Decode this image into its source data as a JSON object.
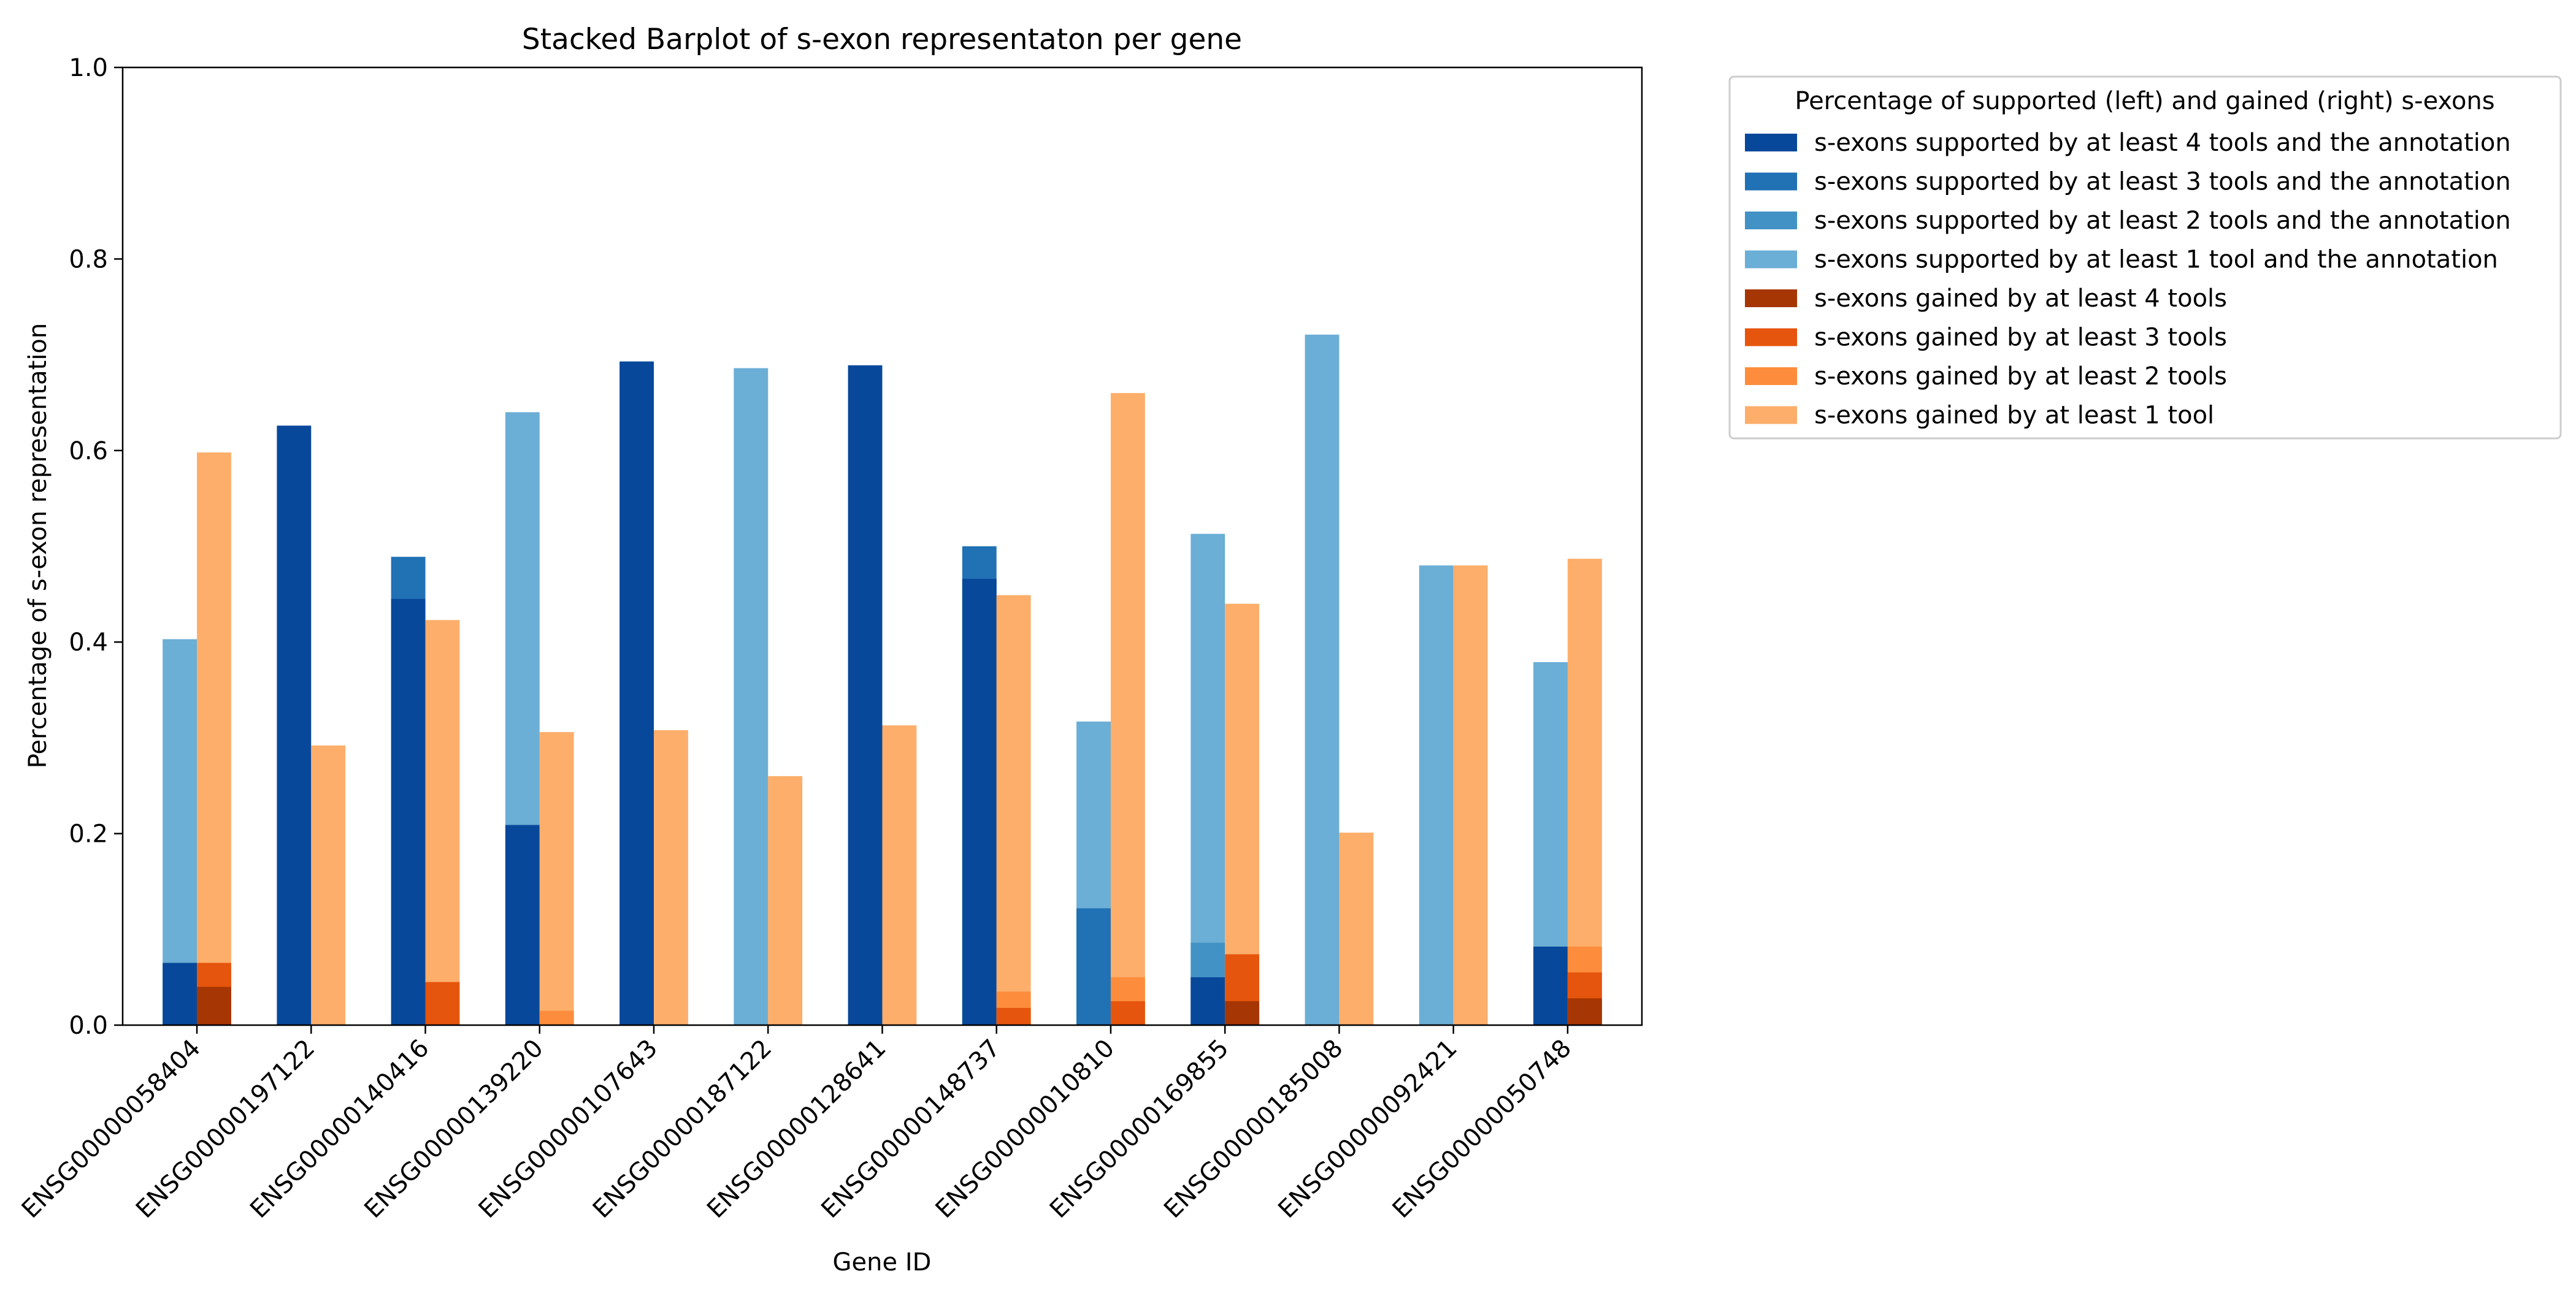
{
  "chart_data": {
    "type": "bar",
    "title": "Stacked Barplot of s-exon representaton per gene",
    "xlabel": "Gene ID",
    "ylabel": "Percentage of s-exon representation",
    "ylim": [
      0,
      1.0
    ],
    "yticks": [
      "0.0",
      "0.2",
      "0.4",
      "0.6",
      "0.8",
      "1.0"
    ],
    "grid": false,
    "categories": [
      "ENSG00000058404",
      "ENSG00000197122",
      "ENSG00000140416",
      "ENSG00000139220",
      "ENSG00000107643",
      "ENSG00000187122",
      "ENSG00000128641",
      "ENSG00000148737",
      "ENSG00000010810",
      "ENSG00000169855",
      "ENSG00000185008",
      "ENSG00000092421",
      "ENSG00000050748"
    ],
    "legend": {
      "title": "Percentage of supported (left) and gained (right) s-exons",
      "placement": "outside upper right"
    },
    "supported_series": [
      {
        "name": "s-exons supported by at least 1 tool and the annotation",
        "color": "#6baed6",
        "values": [
          0.403,
          0.0,
          0.0,
          0.64,
          0.0,
          0.686,
          0.0,
          0.0,
          0.317,
          0.513,
          0.721,
          0.48,
          0.379
        ]
      },
      {
        "name": "s-exons supported by at least 2 tools and the annotation",
        "color": "#4292c6",
        "values": [
          0.0,
          0.0,
          0.0,
          0.0,
          0.0,
          0.0,
          0.0,
          0.0,
          0.0,
          0.086,
          0.0,
          0.0,
          0.0
        ]
      },
      {
        "name": "s-exons supported by at least 3 tools and the annotation",
        "color": "#2171b5",
        "values": [
          0.0,
          0.0,
          0.489,
          0.0,
          0.0,
          0.0,
          0.0,
          0.5,
          0.122,
          0.0,
          0.0,
          0.0,
          0.0
        ]
      },
      {
        "name": "s-exons supported by at least 4 tools and the annotation",
        "color": "#08489a",
        "values": [
          0.065,
          0.626,
          0.445,
          0.209,
          0.693,
          0.0,
          0.689,
          0.466,
          0.0,
          0.05,
          0.0,
          0.0,
          0.082
        ]
      }
    ],
    "gained_series": [
      {
        "name": "s-exons gained by at least 1 tool",
        "color": "#fdae6b",
        "values": [
          0.598,
          0.292,
          0.423,
          0.306,
          0.308,
          0.26,
          0.313,
          0.449,
          0.66,
          0.44,
          0.201,
          0.48,
          0.487
        ]
      },
      {
        "name": "s-exons gained by at least 2 tools",
        "color": "#fd8d3c",
        "values": [
          0.0,
          0.0,
          0.0,
          0.015,
          0.0,
          0.0,
          0.0,
          0.035,
          0.05,
          0.0,
          0.0,
          0.0,
          0.082
        ]
      },
      {
        "name": "s-exons gained by at least 3 tools",
        "color": "#e6550d",
        "values": [
          0.065,
          0.0,
          0.045,
          0.0,
          0.0,
          0.0,
          0.0,
          0.018,
          0.025,
          0.074,
          0.0,
          0.0,
          0.055
        ]
      },
      {
        "name": "s-exons gained by at least 4 tools",
        "color": "#a63603",
        "values": [
          0.04,
          0.0,
          0.0,
          0.0,
          0.0,
          0.0,
          0.0,
          0.0,
          0.0,
          0.025,
          0.0,
          0.0,
          0.028
        ]
      }
    ],
    "legend_order": [
      "s-exons supported by at least 4 tools and the annotation",
      "s-exons supported by at least 3 tools and the annotation",
      "s-exons supported by at least 2 tools and the annotation",
      "s-exons supported by at least 1 tool and the annotation",
      "s-exons gained by at least 4 tools",
      "s-exons gained by at least 3 tools",
      "s-exons gained by at least 2 tools",
      "s-exons gained by at least 1 tool"
    ]
  }
}
